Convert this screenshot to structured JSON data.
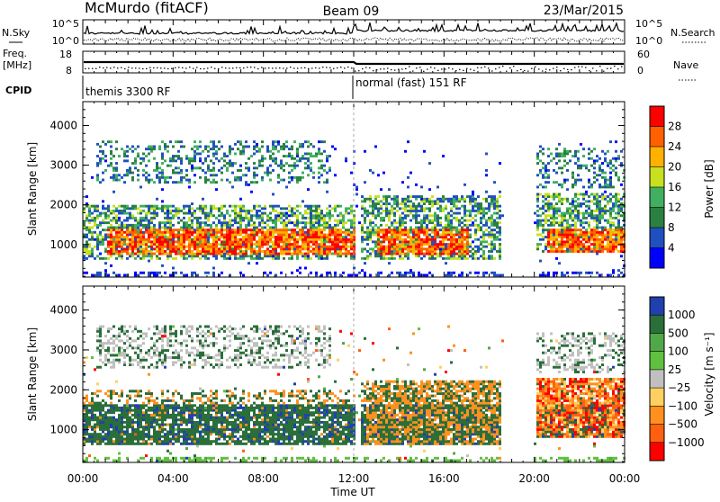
{
  "header": {
    "station": "McMurdo (fitACF)",
    "beam": "Beam 09",
    "date": "23/Mar/2015"
  },
  "top_panels": {
    "nsky_label": "N.Sky",
    "nsky_ticks": [
      "10^5",
      "10^0"
    ],
    "nsearch_label": "N.Search",
    "nsearch_ticks": [
      "10^5",
      "10^0"
    ],
    "freq_label": "Freq.",
    "freq_unit": "[MHz]",
    "freq_ticks": [
      "18",
      "8"
    ],
    "nave_label": "Nave",
    "nave_ticks": [
      "60",
      "0"
    ],
    "cpid_label": "CPID",
    "cpid_segments": [
      {
        "start_hour": 0,
        "end_hour": 12,
        "text": "themis 3300 RF"
      },
      {
        "start_hour": 12,
        "end_hour": 24,
        "text": "normal (fast) 151 RF"
      }
    ]
  },
  "chart_data": [
    {
      "type": "heatmap",
      "panel": "power",
      "ylabel": "Slant Range [km]",
      "ylim": [
        180,
        4600
      ],
      "yticks": [
        1000,
        2000,
        3000,
        4000
      ],
      "xlim": [
        0,
        24
      ],
      "colorbar": {
        "label": "Power [dB]",
        "ticks": [
          "28",
          "24",
          "20",
          "16",
          "12",
          "8",
          "4"
        ],
        "colors": [
          "#ff0000",
          "#ff6000",
          "#ffb000",
          "#c8e020",
          "#40b060",
          "#2a8040",
          "#2050c0",
          "#0000ff"
        ]
      }
    },
    {
      "type": "heatmap",
      "panel": "velocity",
      "ylabel": "Slant Range [km]",
      "ylim": [
        180,
        4600
      ],
      "yticks": [
        1000,
        2000,
        3000,
        4000
      ],
      "xlim": [
        0,
        24
      ],
      "xlabel": "Time UT",
      "xticks": [
        "00:00",
        "04:00",
        "08:00",
        "12:00",
        "16:00",
        "20:00",
        "00:00"
      ],
      "colorbar": {
        "label": "Velocity [m s⁻¹]",
        "ticks": [
          "1000",
          "500",
          "100",
          "25",
          "−25",
          "−100",
          "−500",
          "−1000"
        ],
        "colors": [
          "#2040b0",
          "#2a6e3a",
          "#50a848",
          "#60c040",
          "#c0c0c0",
          "#ffd060",
          "#ff9020",
          "#ff6010",
          "#ff0000"
        ]
      }
    }
  ]
}
